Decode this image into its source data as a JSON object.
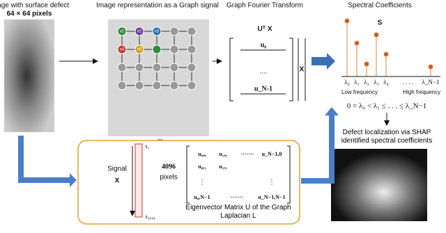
{
  "input": {
    "title": "Image with surface defect",
    "size": "64 × 64 pixels"
  },
  "graph": {
    "title": "Image representation as a Graph signal",
    "nodes": [
      "x1",
      "x2",
      "x3",
      "x4",
      "x5"
    ]
  },
  "gft": {
    "title": "Graph Fourier Transform",
    "formula": "Uᵀ X",
    "rows": [
      "u₀",
      "....",
      "u_N-1"
    ],
    "vector": "X"
  },
  "spectral": {
    "title": "Spectral Coefficients",
    "symbol": "S",
    "lambdas": [
      "λ₀",
      "λ₁",
      "λ₂",
      "λ₃",
      "λ₄",
      ". . . .",
      "λ_N−1"
    ],
    "low": "Low frequency",
    "high": "High frequency",
    "ordering": "0 = λ₀ < λ₁ ≤ . . . ≤ λ_N−1"
  },
  "localization": {
    "title": "Defect localization via SHAP identified spectral coefficients"
  },
  "laplacian": {
    "signal": "Signal",
    "signal_symbol": "X",
    "first": "x₁",
    "last": "x₄₀₉₆",
    "count": "4096",
    "unit": "pixels",
    "matrix": [
      [
        "u₀,₀",
        "u₁,₀",
        "·······",
        "u_N−1,0"
      ],
      [
        "u₀,₁",
        "u₁,₁"
      ],
      [
        "u₀,N−1",
        "·······",
        "u_N−1,N−1"
      ]
    ],
    "caption": "Eigenvector Matrix U of the Graph Laplacian L"
  }
}
